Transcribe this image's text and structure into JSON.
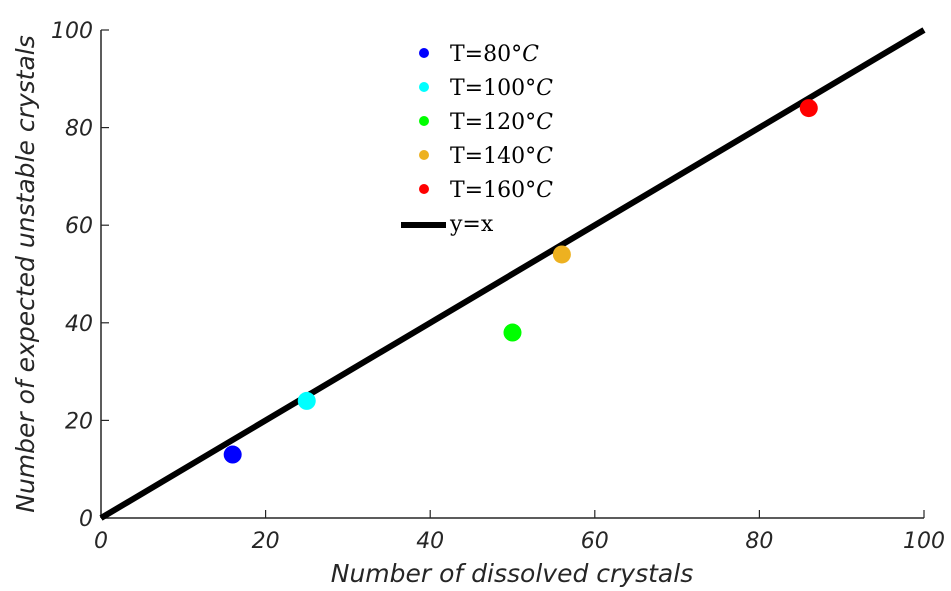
{
  "chart_data": {
    "type": "scatter",
    "xlabel": "Number of dissolved crystals",
    "ylabel": "Number of expected unstable crystals",
    "xlim": [
      0,
      100
    ],
    "ylim": [
      0,
      100
    ],
    "x_ticks": [
      0,
      20,
      40,
      60,
      80,
      100
    ],
    "y_ticks": [
      0,
      20,
      40,
      60,
      80,
      100
    ],
    "x_tick_labels": [
      "0",
      "20",
      "40",
      "60",
      "80",
      "100"
    ],
    "y_tick_labels": [
      "0",
      "20",
      "40",
      "60",
      "80",
      "100"
    ],
    "grid": false,
    "legend_position": "top-center",
    "series": [
      {
        "name": "T=80°C",
        "label_prefix": "T=80°",
        "label_unit": "C",
        "color": "#0000ff",
        "points": [
          {
            "x": 16,
            "y": 13
          }
        ]
      },
      {
        "name": "T=100°C",
        "label_prefix": "T=100°",
        "label_unit": "C",
        "color": "#00ffff",
        "points": [
          {
            "x": 25,
            "y": 24
          }
        ]
      },
      {
        "name": "T=120°C",
        "label_prefix": "T=120°",
        "label_unit": "C",
        "color": "#00ff00",
        "points": [
          {
            "x": 50,
            "y": 38
          }
        ]
      },
      {
        "name": "T=140°C",
        "label_prefix": "T=140°",
        "label_unit": "C",
        "color": "#edb120",
        "points": [
          {
            "x": 56,
            "y": 54
          }
        ]
      },
      {
        "name": "T=160°C",
        "label_prefix": "T=160°",
        "label_unit": "C",
        "color": "#ff0000",
        "points": [
          {
            "x": 86,
            "y": 84
          }
        ]
      }
    ],
    "reference_line": {
      "name": "y=x",
      "color": "#000000",
      "points": [
        {
          "x": 0,
          "y": 0
        },
        {
          "x": 100,
          "y": 100
        }
      ]
    }
  }
}
